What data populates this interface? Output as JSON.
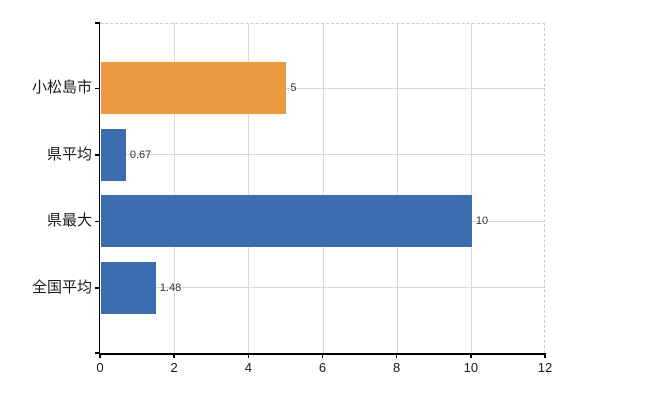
{
  "chart_data": {
    "type": "bar",
    "orientation": "horizontal",
    "title": "",
    "xlabel": "",
    "ylabel": "",
    "categories": [
      "小松島市",
      "県平均",
      "県最大",
      "全国平均"
    ],
    "values": [
      5,
      0.67,
      10,
      1.48
    ],
    "data_labels": [
      "5",
      "0.67",
      "10",
      "1.48"
    ],
    "bar_colors": [
      "#ED9B40",
      "#3C6DAE",
      "#3C6DAE",
      "#3C6DAE"
    ],
    "xlim": [
      0,
      12
    ],
    "x_ticks": [
      0,
      2,
      4,
      6,
      8,
      10,
      12
    ],
    "x_tick_labels": [
      "0",
      "2",
      "4",
      "6",
      "8",
      "10",
      "12"
    ],
    "grid": "on",
    "legend": "none"
  },
  "style": {
    "background": "#FFFFFF",
    "bar_orange": "#ED9B40",
    "bar_blue": "#3C6DAE",
    "grid_color": "#D8D8D8",
    "plot_border_color": "#CCCCCC",
    "axis_color": "#000000",
    "category_label_color": "#1A1A1A",
    "tick_label_color": "#1A1A1A",
    "value_label_color": "#333333"
  }
}
